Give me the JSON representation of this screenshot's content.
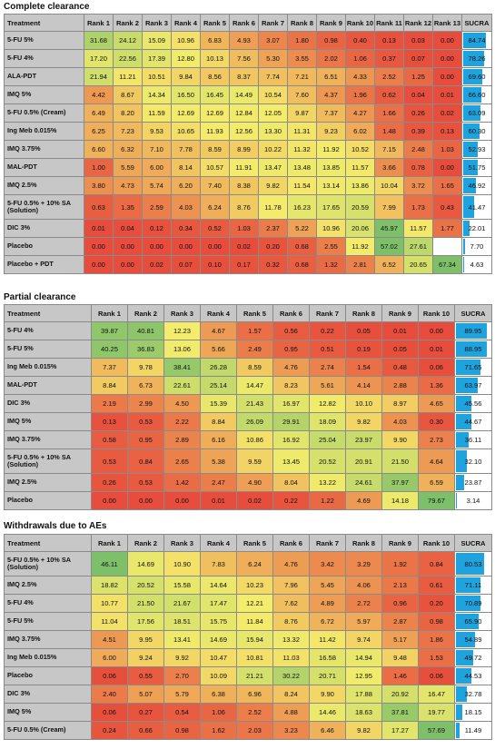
{
  "colors": {
    "red": "#e74c3c",
    "yellow": "#f4ec6c",
    "green": "#7ec06a",
    "header_bg": "#c7c7c7",
    "sucra_bar": "#1ea3de"
  },
  "chart_data": [
    {
      "type": "heatmap",
      "title": "Complete clearance",
      "columns": [
        "Treatment",
        "Rank 1",
        "Rank 2",
        "Rank 3",
        "Rank 4",
        "Rank 5",
        "Rank 6",
        "Rank 7",
        "Rank 8",
        "Rank 9",
        "Rank 10",
        "Rank 11",
        "Rank 12",
        "Rank 13",
        "SUCRA"
      ],
      "rows": [
        {
          "name": "5-FU 5%",
          "values": [
            "31.68",
            "24.12",
            "15.09",
            "10.96",
            "6.83",
            "4.93",
            "3.07",
            "1.80",
            "0.98",
            "0.40",
            "0.13",
            "0.03",
            "0.00"
          ],
          "sucra": "84.74"
        },
        {
          "name": "5-FU 4%",
          "values": [
            "17.20",
            "22.56",
            "17.39",
            "12.80",
            "10.13",
            "7.56",
            "5.30",
            "3.55",
            "2.02",
            "1.06",
            "0.37",
            "0.07",
            "0.00"
          ],
          "sucra": "78.26"
        },
        {
          "name": "ALA-PDT",
          "values": [
            "21.94",
            "11.21",
            "10.51",
            "9.84",
            "8.56",
            "8.37",
            "7.74",
            "7.21",
            "6.51",
            "4.33",
            "2.52",
            "1.25",
            "0.00"
          ],
          "sucra": "69.60"
        },
        {
          "name": "IMQ 5%",
          "values": [
            "4.42",
            "8.67",
            "14.34",
            "16.50",
            "16.45",
            "14.49",
            "10.54",
            "7.60",
            "4.37",
            "1.96",
            "0.62",
            "0.04",
            "0.01"
          ],
          "sucra": "66.60"
        },
        {
          "name": "5-FU 0.5% (Cream)",
          "values": [
            "6.49",
            "8.20",
            "11.59",
            "12.69",
            "12.69",
            "12.84",
            "12.05",
            "9.87",
            "7.37",
            "4.27",
            "1.66",
            "0.26",
            "0.02"
          ],
          "sucra": "63.09"
        },
        {
          "name": "Ing Meb 0.015%",
          "values": [
            "6.25",
            "7.23",
            "9.53",
            "10.65",
            "11.93",
            "12.56",
            "13.30",
            "11.31",
            "9.23",
            "6.02",
            "1.48",
            "0.39",
            "0.13"
          ],
          "sucra": "60.30"
        },
        {
          "name": "IMQ 3.75%",
          "values": [
            "6.60",
            "6.32",
            "7.10",
            "7.78",
            "8.59",
            "8.99",
            "10.22",
            "11.32",
            "11.92",
            "10.52",
            "7.15",
            "2.48",
            "1.03"
          ],
          "sucra": "52.93"
        },
        {
          "name": "MAL-PDT",
          "values": [
            "1.00",
            "5.59",
            "6.00",
            "8.14",
            "10.57",
            "11.91",
            "13.47",
            "13.48",
            "13.85",
            "11.57",
            "3.66",
            "0.78",
            "0.00"
          ],
          "sucra": "51.75"
        },
        {
          "name": "IMQ 2.5%",
          "values": [
            "3.80",
            "4.73",
            "5.74",
            "6.20",
            "7.40",
            "8.38",
            "9.82",
            "11.54",
            "13.14",
            "13.86",
            "10.04",
            "3.72",
            "1.65"
          ],
          "sucra": "46.92"
        },
        {
          "name": "5-FU 0.5% + 10% SA (Solution)",
          "values": [
            "0.63",
            "1.35",
            "2.59",
            "4.03",
            "6.24",
            "8.76",
            "11.78",
            "16.23",
            "17.65",
            "20.59",
            "7.99",
            "1.73",
            "0.43"
          ],
          "sucra": "41.47"
        },
        {
          "name": "DIC 3%",
          "values": [
            "0.01",
            "0.04",
            "0.12",
            "0.34",
            "0.52",
            "1.03",
            "2.37",
            "5.22",
            "10.96",
            "20.06",
            "45.97",
            "11.57",
            "1.77"
          ],
          "sucra": "22.01"
        },
        {
          "name": "Placebo",
          "values": [
            "0.00",
            "0.00",
            "0.00",
            "0.00",
            "0.00",
            "0.02",
            "0.20",
            "0.68",
            "2.55",
            "11.92",
            "57.02",
            "27.61",
            ""
          ],
          "sucra": "7.70"
        },
        {
          "name": "Placebo + PDT",
          "values": [
            "0.00",
            "0.00",
            "0.02",
            "0.07",
            "0.10",
            "0.17",
            "0.32",
            "0.68",
            "1.32",
            "2.81",
            "6.52",
            "20.65",
            "67.34"
          ],
          "sucra": "4.63"
        }
      ]
    },
    {
      "type": "heatmap",
      "title": "Partial clearance",
      "columns": [
        "Treatment",
        "Rank 1",
        "Rank 2",
        "Rank 3",
        "Rank 4",
        "Rank 5",
        "Rank 6",
        "Rank 7",
        "Rank 8",
        "Rank 9",
        "Rank 10",
        "SUCRA"
      ],
      "rows": [
        {
          "name": "5-FU 4%",
          "values": [
            "39.87",
            "40.81",
            "12.23",
            "4.67",
            "1.57",
            "0.56",
            "0.22",
            "0.05",
            "0.01",
            "0.00"
          ],
          "sucra": "89.95"
        },
        {
          "name": "5-FU 5%",
          "values": [
            "40.25",
            "36.83",
            "13.06",
            "5.66",
            "2.49",
            "0.95",
            "0.51",
            "0.19",
            "0.05",
            "0.01"
          ],
          "sucra": "88.95"
        },
        {
          "name": "Ing Meb 0.015%",
          "values": [
            "7.37",
            "9.78",
            "38.41",
            "26.28",
            "8.59",
            "4.76",
            "2.74",
            "1.54",
            "0.48",
            "0.06"
          ],
          "sucra": "71.65"
        },
        {
          "name": "MAL-PDT",
          "values": [
            "8.84",
            "6.73",
            "22.61",
            "25.14",
            "14.47",
            "8.23",
            "5.61",
            "4.14",
            "2.88",
            "1.36"
          ],
          "sucra": "63.97"
        },
        {
          "name": "DIC 3%",
          "values": [
            "2.19",
            "2.99",
            "4.50",
            "15.39",
            "21.43",
            "16.97",
            "12.82",
            "10.10",
            "8.97",
            "4.65"
          ],
          "sucra": "45.56"
        },
        {
          "name": "IMQ 5%",
          "values": [
            "0.13",
            "0.53",
            "2.22",
            "8.84",
            "26.09",
            "29.91",
            "18.09",
            "9.82",
            "4.03",
            "0.30"
          ],
          "sucra": "44.67"
        },
        {
          "name": "IMQ 3.75%",
          "values": [
            "0.58",
            "0.95",
            "2.89",
            "6.16",
            "10.86",
            "16.92",
            "25.04",
            "23.97",
            "9.90",
            "2.73"
          ],
          "sucra": "36.11"
        },
        {
          "name": "5-FU 0.5% + 10% SA (Solution)",
          "values": [
            "0.53",
            "0.84",
            "2.65",
            "5.38",
            "9.59",
            "13.45",
            "20.52",
            "20.91",
            "21.50",
            "4.64"
          ],
          "sucra": "32.10"
        },
        {
          "name": "IMQ 2.5%",
          "values": [
            "0.26",
            "0.53",
            "1.42",
            "2.47",
            "4.90",
            "8.04",
            "13.22",
            "24.61",
            "37.97",
            "6.59"
          ],
          "sucra": "23.87"
        },
        {
          "name": "Placebo",
          "values": [
            "0.00",
            "0.00",
            "0.00",
            "0.01",
            "0.02",
            "0.22",
            "1.22",
            "4.69",
            "14.18",
            "79.67"
          ],
          "sucra": "3.14"
        }
      ]
    },
    {
      "type": "heatmap",
      "title": "Withdrawals due to AEs",
      "columns": [
        "Treatment",
        "Rank 1",
        "Rank 2",
        "Rank 3",
        "Rank 4",
        "Rank 5",
        "Rank 6",
        "Rank 7",
        "Rank 8",
        "Rank 9",
        "Rank 10",
        "SUCRA"
      ],
      "rows": [
        {
          "name": "5-FU 0.5% + 10% SA (Solution)",
          "values": [
            "46.11",
            "14.69",
            "10.90",
            "7.83",
            "6.24",
            "4.76",
            "3.42",
            "3.29",
            "1.92",
            "0.84"
          ],
          "sucra": "80.53"
        },
        {
          "name": "IMQ 2.5%",
          "values": [
            "18.82",
            "20.52",
            "15.58",
            "14.64",
            "10.23",
            "7.96",
            "5.45",
            "4.06",
            "2.13",
            "0.61"
          ],
          "sucra": "71.11"
        },
        {
          "name": "5-FU 4%",
          "values": [
            "10.77",
            "21.50",
            "21.67",
            "17.47",
            "12.21",
            "7.62",
            "4.89",
            "2.72",
            "0.96",
            "0.20"
          ],
          "sucra": "70.89"
        },
        {
          "name": "5-FU 5%",
          "values": [
            "11.04",
            "17.56",
            "18.51",
            "15.75",
            "11.84",
            "8.76",
            "6.72",
            "5.97",
            "2.87",
            "0.98"
          ],
          "sucra": "65.90"
        },
        {
          "name": "IMQ 3.75%",
          "values": [
            "4.51",
            "9.95",
            "13.41",
            "14.69",
            "15.94",
            "13.32",
            "11.42",
            "9.74",
            "5.17",
            "1.86"
          ],
          "sucra": "54.89"
        },
        {
          "name": "Ing Meb 0.015%",
          "values": [
            "6.00",
            "9.24",
            "9.92",
            "10.47",
            "10.81",
            "11.03",
            "16.58",
            "14.94",
            "9.48",
            "1.53"
          ],
          "sucra": "49.72"
        },
        {
          "name": "Placebo",
          "values": [
            "0.06",
            "0.55",
            "2.70",
            "10.09",
            "21.21",
            "30.22",
            "20.71",
            "12.95",
            "1.46",
            "0.06"
          ],
          "sucra": "44.53"
        },
        {
          "name": "DIC 3%",
          "values": [
            "2.40",
            "5.07",
            "5.79",
            "6.38",
            "6.96",
            "8.24",
            "9.90",
            "17.88",
            "20.92",
            "16.47"
          ],
          "sucra": "32.78"
        },
        {
          "name": "IMQ 5%",
          "values": [
            "0.06",
            "0.27",
            "0.54",
            "1.06",
            "2.52",
            "4.88",
            "14.46",
            "18.63",
            "37.81",
            "19.77"
          ],
          "sucra": "18.15"
        },
        {
          "name": "5-FU 0.5% (Cream)",
          "values": [
            "0.24",
            "0.66",
            "0.98",
            "1.62",
            "2.03",
            "3.23",
            "6.46",
            "9.82",
            "17.27",
            "57.69"
          ],
          "sucra": "11.49"
        }
      ]
    }
  ]
}
